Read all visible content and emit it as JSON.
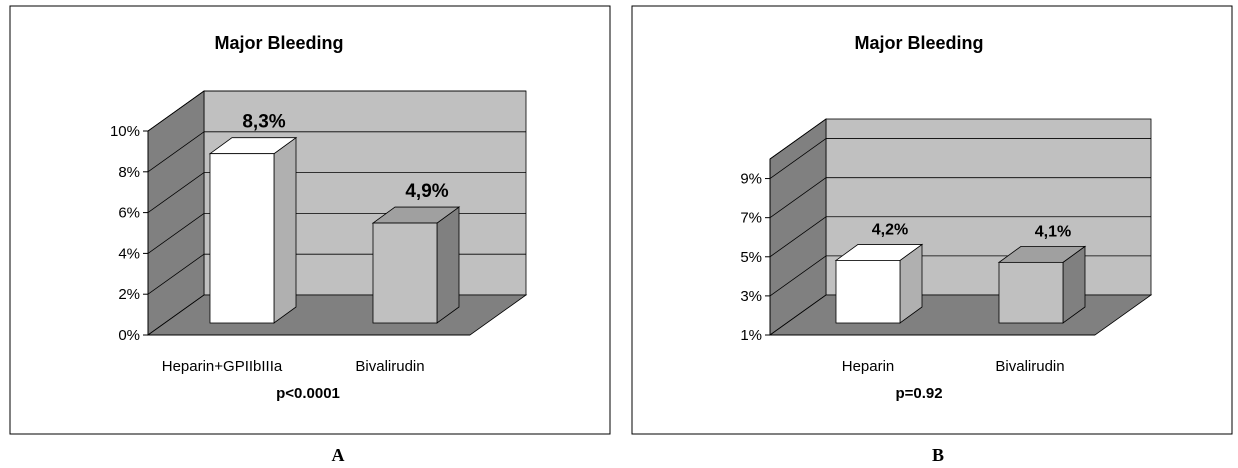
{
  "panels": [
    {
      "caption": "A",
      "chart_data": {
        "type": "bar",
        "title": "Major Bleeding",
        "categories": [
          "Heparin+GPIIbIIIa",
          "Bivalirudin"
        ],
        "values": [
          8.3,
          4.9
        ],
        "data_labels": [
          "8,3%",
          "4,9%"
        ],
        "ylim": [
          0,
          10
        ],
        "yticks": [
          0,
          2,
          4,
          6,
          8,
          10
        ],
        "ytick_labels": [
          "0%",
          "2%",
          "4%",
          "6%",
          "8%",
          "10%"
        ],
        "annotation": "p<0.0001",
        "xlabel": "",
        "ylabel": "",
        "grid": true,
        "bar_colors": [
          "#ffffff",
          "#c0c0c0"
        ],
        "wall_color": "#c0c0c0",
        "floor_color": "#808080"
      }
    },
    {
      "caption": "B",
      "chart_data": {
        "type": "bar",
        "title": "Major Bleeding",
        "categories": [
          "Heparin",
          "Bivalirudin"
        ],
        "values": [
          4.2,
          4.1
        ],
        "data_labels": [
          "4,2%",
          "4,1%"
        ],
        "ylim": [
          1,
          10
        ],
        "yticks": [
          1,
          3,
          5,
          7,
          9
        ],
        "ytick_labels": [
          "1%",
          "3%",
          "5%",
          "7%",
          "9%"
        ],
        "annotation": "p=0.92",
        "xlabel": "",
        "ylabel": "",
        "grid": true,
        "bar_colors": [
          "#ffffff",
          "#c0c0c0"
        ],
        "wall_color": "#c0c0c0",
        "floor_color": "#808080"
      }
    }
  ]
}
